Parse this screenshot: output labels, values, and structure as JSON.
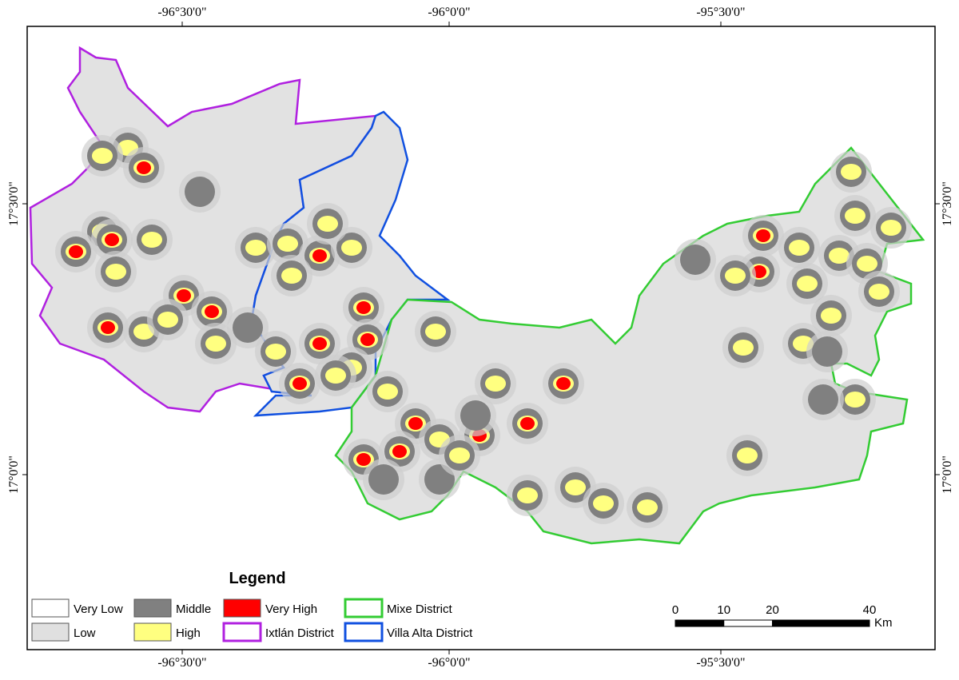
{
  "map": {
    "longitude_labels": [
      "-96°30'0\"",
      "-96°0'0\"",
      "-95°30'0\""
    ],
    "latitude_labels": [
      "17°30'0\"",
      "17°0'0\""
    ],
    "legend": {
      "title": "Legend",
      "items": [
        {
          "label": "Very Low",
          "color": "#ffffff",
          "style": "fill"
        },
        {
          "label": "Middle",
          "color": "#808080",
          "style": "fill"
        },
        {
          "label": "Very High",
          "color": "#ff0000",
          "style": "fill"
        },
        {
          "label": "Mixe District",
          "color": "#33cc33",
          "style": "outline"
        },
        {
          "label": "Low",
          "color": "#e0e0e0",
          "style": "fill"
        },
        {
          "label": "High",
          "color": "#ffff80",
          "style": "fill"
        },
        {
          "label": "Ixtlán District",
          "color": "#b020e0",
          "style": "outline"
        },
        {
          "label": "Villa Alta District",
          "color": "#1050e0",
          "style": "outline"
        }
      ]
    },
    "scale_bar": {
      "ticks": [
        0,
        10,
        20,
        40
      ],
      "unit": "Km"
    }
  }
}
